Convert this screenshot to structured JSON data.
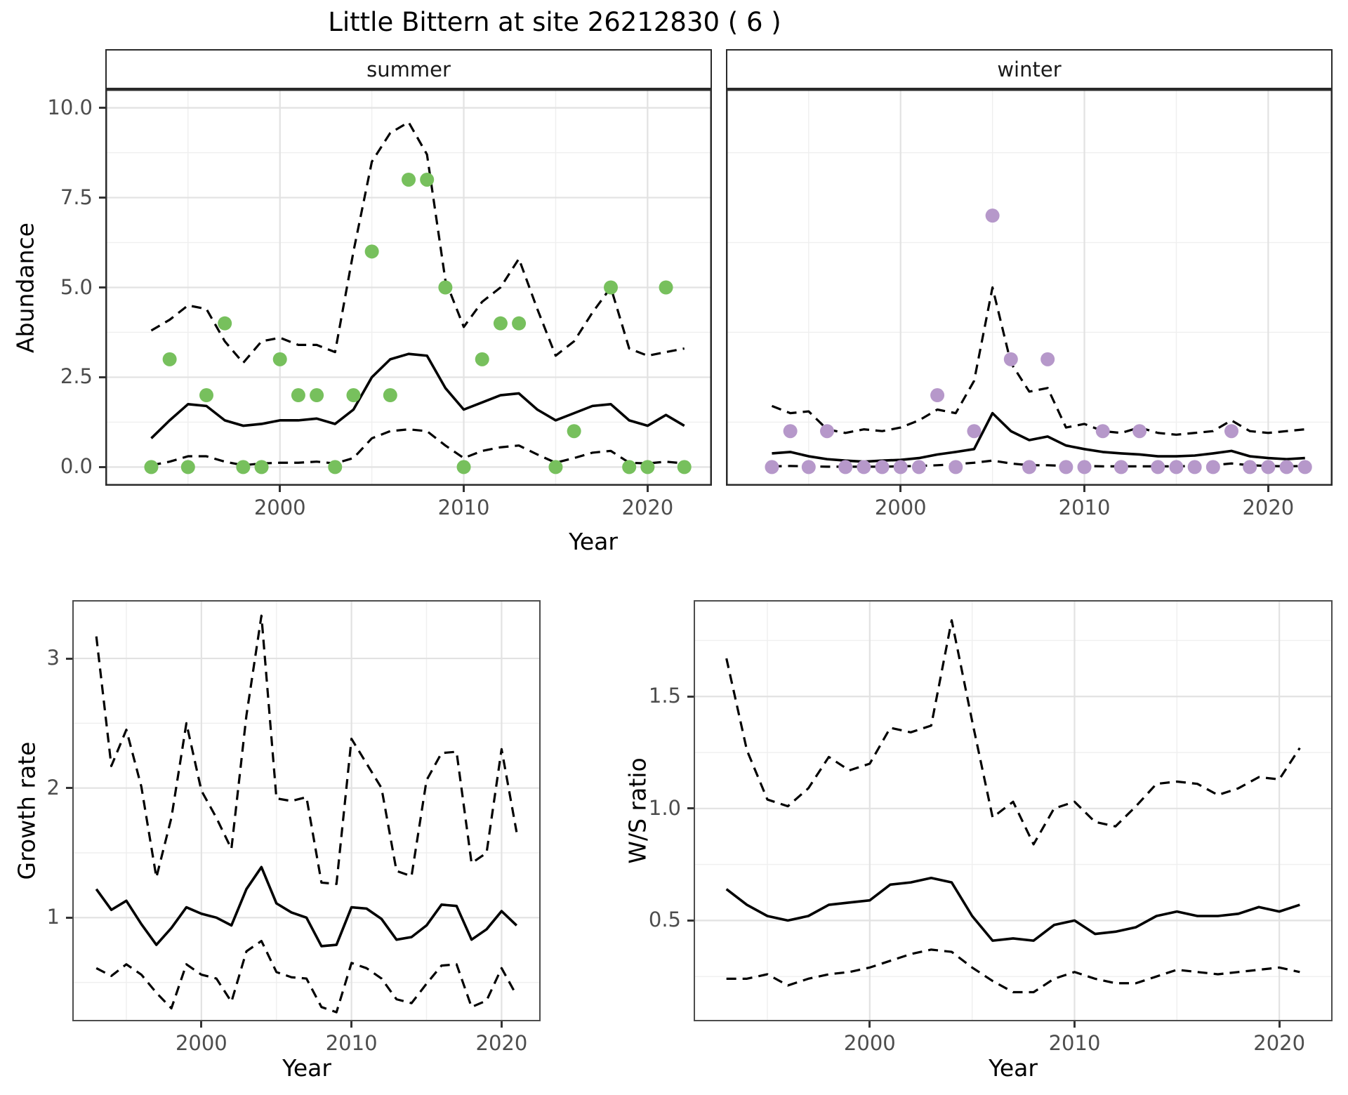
{
  "title": "Little Bittern at site 26212830 ( 6 )",
  "colors": {
    "summer_point": "#77c05d",
    "winter_point": "#b698ca",
    "fit_line": "#000000",
    "ci_line": "#000000",
    "grid_major": "#e2e2e2",
    "grid_minor": "#efefef",
    "strip_bg": "#d9d9d9",
    "panel_bg": "#ffffff",
    "panel_border": "#2a2a2a",
    "tick_text": "#4d4d4d"
  },
  "chart_data": [
    {
      "id": "abundance_summer",
      "type": "scatter",
      "facet_label": "summer",
      "xlabel": "Year",
      "ylabel": "Abundance",
      "xlim": [
        1990.5,
        2023.5
      ],
      "ylim": [
        -0.52,
        10.52
      ],
      "xticks": [
        2000,
        2010,
        2020
      ],
      "xtick_labels": [
        "2000",
        "2010",
        "2020"
      ],
      "yticks": [
        0,
        2.5,
        5,
        7.5,
        10
      ],
      "ytick_labels": [
        "0.0",
        "2.5",
        "5.0",
        "7.5",
        "10.0"
      ],
      "xminor": [
        1995,
        2005,
        2015
      ],
      "yminor": [
        1.25,
        3.75,
        6.25,
        8.75
      ],
      "grid": true,
      "legend": "none",
      "points": {
        "color": "summer_point",
        "x": [
          1993,
          1994,
          1995,
          1996,
          1997,
          1998,
          1999,
          2000,
          2001,
          2002,
          2003,
          2004,
          2005,
          2006,
          2007,
          2008,
          2009,
          2010,
          2011,
          2012,
          2013,
          2015,
          2016,
          2018,
          2019,
          2020,
          2021,
          2022
        ],
        "y": [
          0,
          3,
          0,
          2,
          4,
          0,
          0,
          3,
          2,
          2,
          0,
          2,
          6,
          2,
          8,
          8,
          5,
          0,
          3,
          4,
          4,
          0,
          1,
          5,
          0,
          0,
          5,
          0
        ]
      },
      "series": [
        {
          "name": "fitted mean",
          "style": "solid",
          "x": [
            1993,
            1994,
            1995,
            1996,
            1997,
            1998,
            1999,
            2000,
            2001,
            2002,
            2003,
            2004,
            2005,
            2006,
            2007,
            2008,
            2009,
            2010,
            2011,
            2012,
            2013,
            2014,
            2015,
            2016,
            2017,
            2018,
            2019,
            2020,
            2021,
            2022
          ],
          "y": [
            0.8,
            1.3,
            1.75,
            1.7,
            1.3,
            1.15,
            1.2,
            1.3,
            1.3,
            1.35,
            1.2,
            1.6,
            2.5,
            3.0,
            3.15,
            3.1,
            2.2,
            1.6,
            1.8,
            2.0,
            2.05,
            1.6,
            1.3,
            1.5,
            1.7,
            1.75,
            1.3,
            1.15,
            1.45,
            1.15
          ]
        },
        {
          "name": "upper 95% CI",
          "style": "dashed",
          "x": [
            1993,
            1994,
            1995,
            1996,
            1997,
            1998,
            1999,
            2000,
            2001,
            2002,
            2003,
            2004,
            2005,
            2006,
            2007,
            2008,
            2009,
            2010,
            2011,
            2012,
            2013,
            2014,
            2015,
            2016,
            2017,
            2018,
            2019,
            2020,
            2021,
            2022
          ],
          "y": [
            3.8,
            4.1,
            4.5,
            4.4,
            3.5,
            2.9,
            3.5,
            3.6,
            3.4,
            3.4,
            3.2,
            6.0,
            8.5,
            9.3,
            9.6,
            8.7,
            5.2,
            3.9,
            4.6,
            5.0,
            5.8,
            4.4,
            3.1,
            3.5,
            4.3,
            5.0,
            3.3,
            3.1,
            3.2,
            3.3
          ]
        },
        {
          "name": "lower 95% CI",
          "style": "dashed",
          "x": [
            1993,
            1994,
            1995,
            1996,
            1997,
            1998,
            1999,
            2000,
            2001,
            2002,
            2003,
            2004,
            2005,
            2006,
            2007,
            2008,
            2009,
            2010,
            2011,
            2012,
            2013,
            2014,
            2015,
            2016,
            2017,
            2018,
            2019,
            2020,
            2021,
            2022
          ],
          "y": [
            0.05,
            0.15,
            0.3,
            0.3,
            0.15,
            0.05,
            0.1,
            0.12,
            0.12,
            0.15,
            0.1,
            0.25,
            0.8,
            1.0,
            1.05,
            1.0,
            0.6,
            0.25,
            0.45,
            0.55,
            0.6,
            0.35,
            0.12,
            0.25,
            0.4,
            0.45,
            0.12,
            0.1,
            0.15,
            0.1
          ]
        }
      ]
    },
    {
      "id": "abundance_winter",
      "type": "scatter",
      "facet_label": "winter",
      "xlabel": "Year",
      "ylabel": "Abundance",
      "xlim": [
        1990.5,
        2023.5
      ],
      "ylim": [
        -0.52,
        10.52
      ],
      "xticks": [
        2000,
        2010,
        2020
      ],
      "xtick_labels": [
        "2000",
        "2010",
        "2020"
      ],
      "yticks": [],
      "ytick_labels": [],
      "xminor": [
        1995,
        2005,
        2015
      ],
      "yminor": [
        1.25,
        3.75,
        6.25,
        8.75
      ],
      "grid": true,
      "legend": "none",
      "points": {
        "color": "winter_point",
        "x": [
          1993,
          1994,
          1995,
          1996,
          1997,
          1998,
          1999,
          2000,
          2001,
          2002,
          2003,
          2004,
          2005,
          2006,
          2007,
          2008,
          2009,
          2010,
          2011,
          2012,
          2013,
          2014,
          2015,
          2016,
          2017,
          2018,
          2019,
          2020,
          2021,
          2022
        ],
        "y": [
          0,
          1,
          0,
          1,
          0,
          0,
          0,
          0,
          0,
          2,
          0,
          1,
          7,
          3,
          0,
          3,
          0,
          0,
          1,
          0,
          1,
          0,
          0,
          0,
          0,
          1,
          0,
          0,
          0,
          0
        ]
      },
      "series": [
        {
          "name": "fitted mean",
          "style": "solid",
          "x": [
            1993,
            1994,
            1995,
            1996,
            1997,
            1998,
            1999,
            2000,
            2001,
            2002,
            2003,
            2004,
            2005,
            2006,
            2007,
            2008,
            2009,
            2010,
            2011,
            2012,
            2013,
            2014,
            2015,
            2016,
            2017,
            2018,
            2019,
            2020,
            2021,
            2022
          ],
          "y": [
            0.38,
            0.42,
            0.3,
            0.22,
            0.18,
            0.15,
            0.18,
            0.2,
            0.25,
            0.35,
            0.42,
            0.5,
            1.5,
            1.0,
            0.75,
            0.85,
            0.6,
            0.5,
            0.42,
            0.38,
            0.35,
            0.3,
            0.3,
            0.32,
            0.38,
            0.45,
            0.3,
            0.25,
            0.22,
            0.25
          ]
        },
        {
          "name": "upper 95% CI",
          "style": "dashed",
          "x": [
            1993,
            1994,
            1995,
            1996,
            1997,
            1998,
            1999,
            2000,
            2001,
            2002,
            2003,
            2004,
            2005,
            2006,
            2007,
            2008,
            2009,
            2010,
            2011,
            2012,
            2013,
            2014,
            2015,
            2016,
            2017,
            2018,
            2019,
            2020,
            2021,
            2022
          ],
          "y": [
            1.7,
            1.5,
            1.55,
            1.05,
            0.95,
            1.05,
            1.0,
            1.1,
            1.3,
            1.6,
            1.5,
            2.4,
            5.0,
            2.9,
            2.1,
            2.2,
            1.1,
            1.2,
            1.0,
            0.95,
            1.1,
            0.95,
            0.9,
            0.95,
            1.0,
            1.3,
            1.0,
            0.95,
            1.0,
            1.05
          ]
        },
        {
          "name": "lower 95% CI",
          "style": "dashed",
          "x": [
            1993,
            1994,
            1995,
            1996,
            1997,
            1998,
            1999,
            2000,
            2001,
            2002,
            2003,
            2004,
            2005,
            2006,
            2007,
            2008,
            2009,
            2010,
            2011,
            2012,
            2013,
            2014,
            2015,
            2016,
            2017,
            2018,
            2019,
            2020,
            2021,
            2022
          ],
          "y": [
            0.02,
            0.03,
            0.02,
            0.01,
            0.01,
            0.01,
            0.01,
            0.02,
            0.03,
            0.05,
            0.08,
            0.12,
            0.18,
            0.1,
            0.05,
            0.05,
            0.03,
            0.03,
            0.02,
            0.02,
            0.02,
            0.02,
            0.02,
            0.03,
            0.05,
            0.1,
            0.05,
            0.03,
            0.02,
            0.03
          ]
        }
      ]
    },
    {
      "id": "growth_rate",
      "type": "line",
      "facet_label": "",
      "xlabel": "Year",
      "ylabel": "Growth rate",
      "xlim": [
        1991.4,
        2022.6
      ],
      "ylim": [
        0.2,
        3.45
      ],
      "xticks": [
        2000,
        2010,
        2020
      ],
      "xtick_labels": [
        "2000",
        "2010",
        "2020"
      ],
      "yticks": [
        1,
        2,
        3
      ],
      "ytick_labels": [
        "1",
        "2",
        "3"
      ],
      "xminor": [
        1995,
        2005,
        2015
      ],
      "yminor": [
        0.5,
        1.5,
        2.5
      ],
      "grid": true,
      "legend": "none",
      "points": null,
      "series": [
        {
          "name": "growth rate",
          "style": "solid",
          "x": [
            1993,
            1994,
            1995,
            1996,
            1997,
            1998,
            1999,
            2000,
            2001,
            2002,
            2003,
            2004,
            2005,
            2006,
            2007,
            2008,
            2009,
            2010,
            2011,
            2012,
            2013,
            2014,
            2015,
            2016,
            2017,
            2018,
            2019,
            2020,
            2021
          ],
          "y": [
            1.22,
            1.06,
            1.13,
            0.95,
            0.79,
            0.92,
            1.08,
            1.03,
            1.0,
            0.94,
            1.22,
            1.39,
            1.11,
            1.04,
            1.0,
            0.78,
            0.79,
            1.08,
            1.07,
            0.99,
            0.83,
            0.85,
            0.94,
            1.1,
            1.09,
            0.83,
            0.91,
            1.05,
            0.94
          ]
        },
        {
          "name": "upper 95% CI",
          "style": "dashed",
          "x": [
            1993,
            1994,
            1995,
            1996,
            1997,
            1998,
            1999,
            2000,
            2001,
            2002,
            2003,
            2004,
            2005,
            2006,
            2007,
            2008,
            2009,
            2010,
            2011,
            2012,
            2013,
            2014,
            2015,
            2016,
            2017,
            2018,
            2019,
            2020,
            2021
          ],
          "y": [
            3.17,
            2.17,
            2.45,
            2.01,
            1.31,
            1.77,
            2.5,
            1.98,
            1.77,
            1.53,
            2.56,
            3.33,
            1.92,
            1.9,
            1.93,
            1.27,
            1.26,
            2.38,
            2.19,
            2.0,
            1.36,
            1.32,
            2.06,
            2.27,
            2.28,
            1.42,
            1.5,
            2.3,
            1.66
          ]
        },
        {
          "name": "lower 95% CI",
          "style": "dashed",
          "x": [
            1993,
            1994,
            1995,
            1996,
            1997,
            1998,
            1999,
            2000,
            2001,
            2002,
            2003,
            2004,
            2005,
            2006,
            2007,
            2008,
            2009,
            2010,
            2011,
            2012,
            2013,
            2014,
            2015,
            2016,
            2017,
            2018,
            2019,
            2020,
            2021
          ],
          "y": [
            0.61,
            0.55,
            0.64,
            0.56,
            0.42,
            0.3,
            0.64,
            0.56,
            0.53,
            0.35,
            0.74,
            0.82,
            0.58,
            0.54,
            0.53,
            0.31,
            0.27,
            0.65,
            0.61,
            0.53,
            0.37,
            0.34,
            0.49,
            0.63,
            0.64,
            0.31,
            0.36,
            0.61,
            0.4
          ]
        }
      ]
    },
    {
      "id": "ws_ratio",
      "type": "line",
      "facet_label": "",
      "xlabel": "Year",
      "ylabel": "W/S ratio",
      "xlim": [
        1991.4,
        2022.6
      ],
      "ylim": [
        0.05,
        1.93
      ],
      "xticks": [
        2000,
        2010,
        2020
      ],
      "xtick_labels": [
        "2000",
        "2010",
        "2020"
      ],
      "yticks": [
        0.5,
        1.0,
        1.5
      ],
      "ytick_labels": [
        "0.5",
        "1.0",
        "1.5"
      ],
      "xminor": [
        1995,
        2005,
        2015
      ],
      "yminor": [
        0.25,
        0.75,
        1.25,
        1.75
      ],
      "grid": true,
      "legend": "none",
      "points": null,
      "series": [
        {
          "name": "W/S ratio",
          "style": "solid",
          "x": [
            1993,
            1994,
            1995,
            1996,
            1997,
            1998,
            1999,
            2000,
            2001,
            2002,
            2003,
            2004,
            2005,
            2006,
            2007,
            2008,
            2009,
            2010,
            2011,
            2012,
            2013,
            2014,
            2015,
            2016,
            2017,
            2018,
            2019,
            2020,
            2021
          ],
          "y": [
            0.64,
            0.57,
            0.52,
            0.5,
            0.52,
            0.57,
            0.58,
            0.59,
            0.66,
            0.67,
            0.69,
            0.67,
            0.52,
            0.41,
            0.42,
            0.41,
            0.48,
            0.5,
            0.44,
            0.45,
            0.47,
            0.52,
            0.54,
            0.52,
            0.52,
            0.53,
            0.56,
            0.54,
            0.57
          ]
        },
        {
          "name": "upper 95% CI",
          "style": "dashed",
          "x": [
            1993,
            1994,
            1995,
            1996,
            1997,
            1998,
            1999,
            2000,
            2001,
            2002,
            2003,
            2004,
            2005,
            2006,
            2007,
            2008,
            2009,
            2010,
            2011,
            2012,
            2013,
            2014,
            2015,
            2016,
            2017,
            2018,
            2019,
            2020,
            2021
          ],
          "y": [
            1.67,
            1.26,
            1.04,
            1.01,
            1.09,
            1.23,
            1.17,
            1.2,
            1.36,
            1.34,
            1.37,
            1.84,
            1.39,
            0.96,
            1.03,
            0.84,
            1.0,
            1.03,
            0.94,
            0.92,
            1.01,
            1.11,
            1.12,
            1.11,
            1.06,
            1.09,
            1.14,
            1.13,
            1.27
          ]
        },
        {
          "name": "lower 95% CI",
          "style": "dashed",
          "x": [
            1993,
            1994,
            1995,
            1996,
            1997,
            1998,
            1999,
            2000,
            2001,
            2002,
            2003,
            2004,
            2005,
            2006,
            2007,
            2008,
            2009,
            2010,
            2011,
            2012,
            2013,
            2014,
            2015,
            2016,
            2017,
            2018,
            2019,
            2020,
            2021
          ],
          "y": [
            0.24,
            0.24,
            0.26,
            0.21,
            0.24,
            0.26,
            0.27,
            0.29,
            0.32,
            0.35,
            0.37,
            0.36,
            0.29,
            0.23,
            0.18,
            0.18,
            0.24,
            0.27,
            0.24,
            0.22,
            0.22,
            0.25,
            0.28,
            0.27,
            0.26,
            0.27,
            0.28,
            0.29,
            0.27
          ]
        }
      ]
    }
  ]
}
